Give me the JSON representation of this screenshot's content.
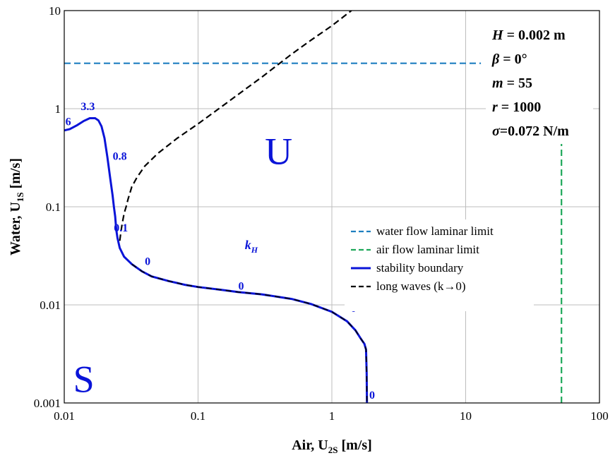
{
  "chart_data": {
    "type": "line",
    "xscale": "log",
    "yscale": "log",
    "xlim": [
      0.01,
      100
    ],
    "ylim": [
      0.001,
      10
    ],
    "grid": true,
    "xlabel_main": "Air, U",
    "xlabel_sub": "2S",
    "xlabel_unit": " [m/s]",
    "ylabel_main": "Water, U",
    "ylabel_sub": "1S",
    "ylabel_unit": " [m/s]",
    "x_ticks": [
      {
        "value": 0.01,
        "label": "0.01"
      },
      {
        "value": 0.1,
        "label": "0.1"
      },
      {
        "value": 1,
        "label": "1"
      },
      {
        "value": 10,
        "label": "10"
      },
      {
        "value": 100,
        "label": "100"
      }
    ],
    "y_ticks": [
      {
        "value": 0.001,
        "label": "0.001"
      },
      {
        "value": 0.01,
        "label": "0.01"
      },
      {
        "value": 0.1,
        "label": "0.1"
      },
      {
        "value": 1,
        "label": "1"
      },
      {
        "value": 10,
        "label": "10"
      }
    ],
    "parameters": [
      {
        "symbol": "H",
        "rest": " = 0.002 m"
      },
      {
        "symbol": "β",
        "rest": " = 0°"
      },
      {
        "symbol": "m",
        "rest": " = 55"
      },
      {
        "symbol": "r",
        "rest": " = 1000"
      },
      {
        "symbol": "σ",
        "rest": "=0.072 N/m"
      }
    ],
    "legend_position": "center-right",
    "series": [
      {
        "name": "water flow laminar limit",
        "color": "#1f7fc0",
        "style": "dashed",
        "x": [
          0.01,
          13
        ],
        "y": [
          2.9,
          2.9
        ]
      },
      {
        "name": "air flow laminar limit",
        "color": "#1ea85a",
        "style": "dashed",
        "x": [
          52,
          52
        ],
        "y": [
          0.001,
          0.47
        ]
      },
      {
        "name": "stability boundary",
        "color": "#0a14d8",
        "style": "solid",
        "x": [
          0.01,
          0.011,
          0.0125,
          0.014,
          0.0155,
          0.017,
          0.018,
          0.019,
          0.02,
          0.021,
          0.022,
          0.023,
          0.0235,
          0.024,
          0.0245,
          0.025,
          0.026,
          0.028,
          0.032,
          0.038,
          0.045,
          0.06,
          0.08,
          0.1,
          0.15,
          0.2,
          0.3,
          0.5,
          0.7,
          1.0,
          1.3,
          1.5,
          1.65,
          1.75,
          1.8,
          1.82,
          1.83
        ],
        "y": [
          0.6,
          0.62,
          0.68,
          0.75,
          0.8,
          0.8,
          0.76,
          0.66,
          0.5,
          0.32,
          0.2,
          0.13,
          0.1,
          0.08,
          0.058,
          0.048,
          0.038,
          0.031,
          0.026,
          0.022,
          0.0195,
          0.0175,
          0.016,
          0.0152,
          0.0142,
          0.0135,
          0.0128,
          0.0115,
          0.0102,
          0.0085,
          0.0068,
          0.0055,
          0.0045,
          0.004,
          0.0035,
          0.002,
          0.001
        ]
      },
      {
        "name": "long waves (k→0)",
        "color": "#000000",
        "style": "dashed",
        "x": [
          0.03,
          0.032,
          0.035,
          0.04,
          0.05,
          0.07,
          0.1,
          0.15,
          0.2,
          0.3,
          0.5,
          0.7,
          1.0,
          1.4,
          0.026,
          0.0265,
          0.027,
          0.0275,
          0.028,
          0.029
        ],
        "y": [
          0.12,
          0.16,
          0.2,
          0.26,
          0.35,
          0.5,
          0.7,
          1.05,
          1.4,
          2.1,
          3.6,
          5.0,
          7.0,
          10.0,
          0.045,
          0.055,
          0.065,
          0.075,
          0.085,
          0.1
        ]
      }
    ],
    "region_labels": [
      {
        "text": "U",
        "x": 0.4,
        "y": 0.38
      },
      {
        "text": "S",
        "x": 0.014,
        "y": 0.0018
      }
    ],
    "annotations": [
      {
        "text": "6",
        "x": 0.0107,
        "y": 0.68
      },
      {
        "text": "3.3",
        "x": 0.015,
        "y": 0.97
      },
      {
        "text": "0.8",
        "x": 0.026,
        "y": 0.3
      },
      {
        "text": "0.1",
        "x": 0.0265,
        "y": 0.056
      },
      {
        "text": "0",
        "x": 0.042,
        "y": 0.0255
      },
      {
        "text": "0",
        "x": 0.21,
        "y": 0.0143
      },
      {
        "text": "0",
        "x": 1.45,
        "y": 0.0085
      },
      {
        "text": "0",
        "x": 2.0,
        "y": 0.0011
      },
      {
        "text": "k",
        "sub": "H",
        "x": 0.25,
        "y": 0.037
      }
    ]
  }
}
